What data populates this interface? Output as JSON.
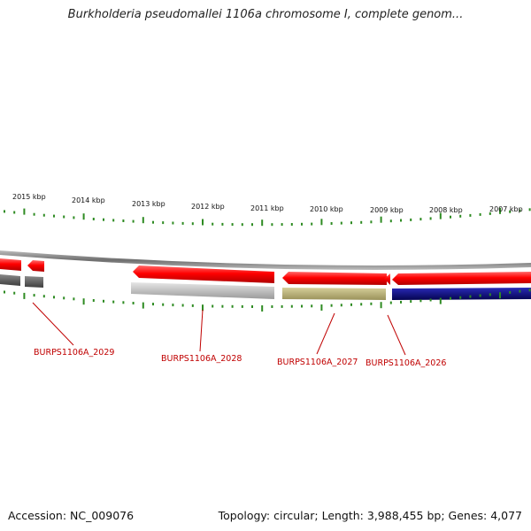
{
  "title": "Burkholderia pseudomallei 1106a chromosome I, complete genom...",
  "footer": {
    "accession": "Accession: NC_009076",
    "summary": "Topology: circular; Length: 3,988,455 bp; Genes: 4,077"
  },
  "ruler": {
    "labels": [
      "2015 kbp",
      "2014 kbp",
      "2013 kbp",
      "2012 kbp",
      "2011 kbp",
      "2010 kbp",
      "2009 kbp",
      "2008 kbp",
      "2007 kbp"
    ]
  },
  "genes": [
    {
      "label": "BURPS1106A_2029",
      "color": "#ff0000"
    },
    {
      "label": "BURPS1106A_2028",
      "color": "#bdbdbd"
    },
    {
      "label": "BURPS1106A_2027",
      "color": "#b5ad74"
    },
    {
      "label": "BURPS1106A_2026",
      "color": "#0a0a8c"
    }
  ],
  "colors": {
    "forward_strand": "#ff0000",
    "backbone": "#888888",
    "ticks": "#2e8b22",
    "label": "#c00000"
  }
}
